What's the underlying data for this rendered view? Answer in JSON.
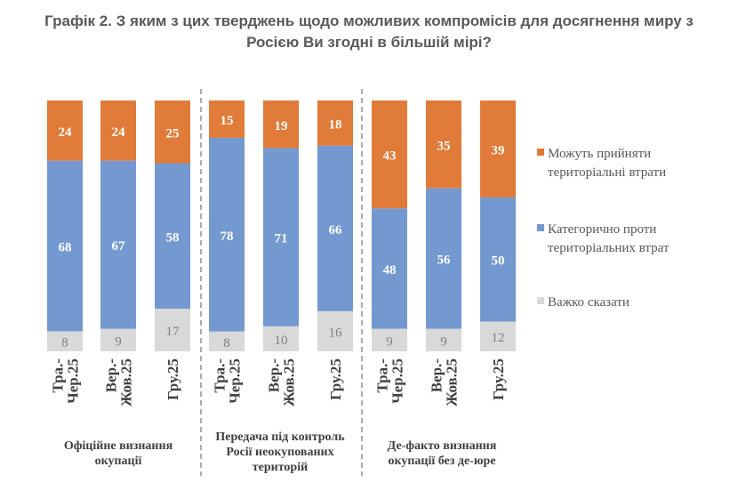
{
  "chart_data": {
    "type": "bar",
    "stacked": true,
    "title_lines": [
      "Графік 2. З яким з цих тверджень щодо можливих компромісів для досягнення миру з",
      "Росією Ви згодні в більшій мірі?"
    ],
    "groups": [
      {
        "label_lines": [
          "Офіційне визнання",
          "окупації"
        ]
      },
      {
        "label_lines": [
          "Передача під контроль",
          "Росії неокупованих",
          "територій"
        ]
      },
      {
        "label_lines": [
          "Де-факто визнання",
          "окупації без де-юре"
        ]
      }
    ],
    "categories": [
      [
        "Тра.-",
        "Чер.25"
      ],
      [
        "Вер.-",
        "Жов.25"
      ],
      [
        "Гру.25"
      ],
      [
        "Тра.-",
        "Чер.25"
      ],
      [
        "Вер.-",
        "Жов.25"
      ],
      [
        "Гру.25"
      ],
      [
        "Тра.-",
        "Чер.25"
      ],
      [
        "Вер.-",
        "Жов.25"
      ],
      [
        "Гру.25"
      ]
    ],
    "series": [
      {
        "name": "Важко сказати",
        "color": "#d9d9d9",
        "label_color": "#7f7f7f",
        "values": [
          8,
          9,
          17,
          8,
          10,
          16,
          9,
          9,
          12
        ]
      },
      {
        "name": "Категорично проти територіальних втрат",
        "color": "#7399d0",
        "label_color": "#ffffff",
        "values": [
          68,
          67,
          58,
          78,
          71,
          66,
          48,
          56,
          50
        ]
      },
      {
        "name": "Можуть прийняти територіальні втрати",
        "color": "#e07b3a",
        "label_color": "#ffffff",
        "values": [
          24,
          24,
          25,
          15,
          19,
          18,
          43,
          35,
          39
        ]
      }
    ],
    "legend": {
      "position": "right",
      "items": [
        {
          "lines": [
            "Можуть прийняти",
            "територіальні втрати"
          ],
          "color": "#e07b3a"
        },
        {
          "lines": [
            "Категорично проти",
            "територіальних втрат"
          ],
          "color": "#7399d0"
        },
        {
          "lines": [
            "Важко сказати"
          ],
          "color": "#d9d9d9"
        }
      ]
    },
    "ylim": [
      0,
      100
    ],
    "grid": false
  }
}
